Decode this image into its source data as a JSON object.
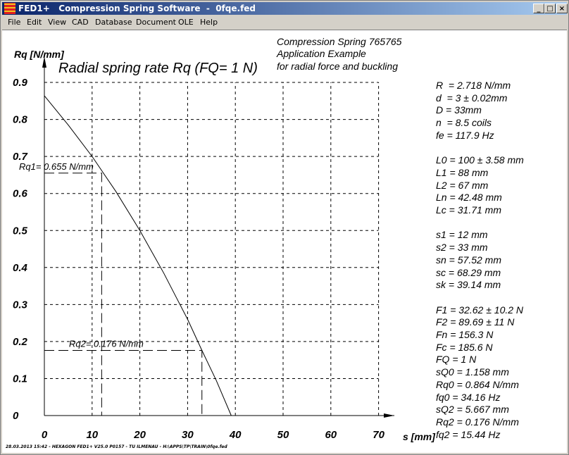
{
  "window": {
    "title": "FED1+   Compression Spring Software  -  0fqe.fed",
    "min": "_",
    "max": "□",
    "close": "×"
  },
  "menu": [
    "File",
    "Edit",
    "View",
    "CAD",
    "Database",
    "Document",
    "OLE",
    "Help"
  ],
  "header": {
    "line1": "Compression Spring  765765",
    "line2": "Application Example",
    "line3": "for radial force and buckling"
  },
  "params": [
    "R  = 2.718 N/mm",
    "d  = 3 ± 0.02mm",
    "D = 33mm",
    "n  = 8.5 coils",
    "fe = 117.9 Hz",
    "",
    "L0 = 100 ± 3.58 mm",
    "L1 = 88 mm",
    "L2 = 67 mm",
    "Ln = 42.48 mm",
    "Lc = 31.71 mm",
    "",
    "s1 = 12 mm",
    "s2 = 33 mm",
    "sn = 57.52 mm",
    "sc = 68.29 mm",
    "sk = 39.14 mm",
    "",
    "F1 = 32.62 ± 10.2 N",
    "F2 = 89.69 ± 11 N",
    "Fn = 156.3 N",
    "Fc = 185.6 N",
    "FQ = 1 N",
    "sQ0 = 1.158 mm",
    "Rq0 = 0.864 N/mm",
    "fq0 = 34.16 Hz",
    "sQ2 = 5.667 mm",
    "Rq2 = 0.176 N/mm",
    "fq2 = 15.44 Hz"
  ],
  "footer": "28.03.2013 15:42 - HEXAGON FED1+ V25.0 P0157 - TU ILMENAU - H:\\APPS\\TP\\TRAIN\\0fqe.fed",
  "chart_data": {
    "type": "line",
    "title": "Radial spring rate Rq  (FQ= 1 N)",
    "xlabel": "s [mm]",
    "ylabel": "Rq [N/mm]",
    "xlim": [
      0,
      70
    ],
    "ylim": [
      0,
      0.9
    ],
    "xticks": [
      "0",
      "10",
      "20",
      "30",
      "40",
      "50",
      "60",
      "70"
    ],
    "yticks": [
      "0",
      "0.1",
      "0.2",
      "0.3",
      "0.4",
      "0.5",
      "0.6",
      "0.7",
      "0.8",
      "0.9"
    ],
    "grid": true,
    "series": [
      {
        "name": "Rq",
        "x": [
          0,
          5,
          10,
          15,
          20,
          25,
          30,
          33,
          36,
          39.14
        ],
        "y": [
          0.864,
          0.785,
          0.7,
          0.605,
          0.5,
          0.385,
          0.26,
          0.176,
          0.095,
          0
        ]
      }
    ],
    "annotations": [
      {
        "label": "Rq1= 0.655 N/mm",
        "x": 12,
        "y": 0.655
      },
      {
        "label": "Rq2= 0.176 N/mm",
        "x": 33,
        "y": 0.176
      }
    ]
  }
}
